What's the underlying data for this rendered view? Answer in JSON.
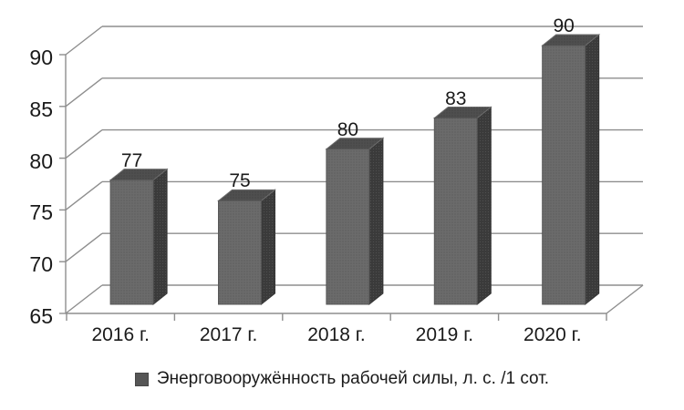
{
  "chart_data": {
    "type": "bar",
    "style": "3d-column",
    "title": "",
    "categories": [
      "2016 г.",
      "2017 г.",
      "2018 г.",
      "2019 г.",
      "2020 г."
    ],
    "series": [
      {
        "name": "Энерговооружённость рабочей силы, л. с. /1 сот.",
        "values": [
          77,
          75,
          80,
          83,
          90
        ]
      }
    ],
    "data_labels": [
      "77",
      "75",
      "80",
      "83",
      "90"
    ],
    "xlabel": "",
    "ylabel": "",
    "ylim": [
      65,
      90
    ],
    "yticks": [
      65,
      70,
      75,
      80,
      85,
      90
    ],
    "grid": true,
    "legend_position": "bottom",
    "colors": {
      "background": "#ffffff",
      "bar_front": "#6b6b6b",
      "bar_top": "#4f4f4f",
      "bar_side": "#3a3a3a",
      "bar_front_stroke": "#585858",
      "bar_top_stroke": "#6f6f6f",
      "bar_side_stroke": "#333333",
      "gridline": "#8e8e8e",
      "text": "#1a1a1a",
      "legend_marker": "#565656"
    }
  }
}
